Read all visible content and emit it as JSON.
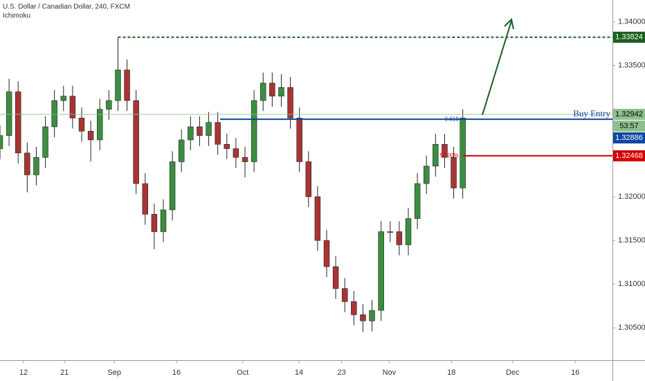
{
  "chart_data": {
    "type": "candlestick",
    "title": "U.S. Dollar / Canadian Dollar, 240, FXCM",
    "subtitle": "Ichimoku",
    "x": [
      0,
      2,
      4,
      6,
      8,
      10,
      12,
      14,
      16,
      18,
      20,
      22,
      24,
      26,
      28,
      30,
      32,
      34,
      36,
      38,
      40,
      42,
      44,
      46,
      48,
      50,
      52,
      54,
      56,
      58,
      60,
      62,
      64,
      66,
      68,
      70,
      72,
      74,
      76,
      78,
      80,
      82,
      84,
      86,
      88,
      90,
      92,
      94,
      96,
      98,
      100,
      102
    ],
    "open": [
      1.3255,
      1.327,
      1.332,
      1.325,
      1.3225,
      1.3245,
      1.328,
      1.331,
      1.3315,
      1.329,
      1.3275,
      1.3265,
      1.33,
      1.331,
      1.3345,
      1.331,
      1.3215,
      1.318,
      1.316,
      1.3185,
      1.324,
      1.3265,
      1.328,
      1.327,
      1.3285,
      1.326,
      1.3255,
      1.3245,
      1.324,
      1.331,
      1.333,
      1.3315,
      1.3325,
      1.329,
      1.324,
      1.32,
      1.315,
      1.312,
      1.3095,
      1.308,
      1.3065,
      1.3058,
      1.307,
      1.316,
      1.316,
      1.3145,
      1.3175,
      1.3215,
      1.3235,
      1.326,
      1.3245,
      1.321
    ],
    "high": [
      1.3282,
      1.3335,
      1.3332,
      1.3262,
      1.3257,
      1.3292,
      1.3322,
      1.3327,
      1.3327,
      1.3302,
      1.3287,
      1.3312,
      1.3322,
      1.3382,
      1.3357,
      1.3322,
      1.3227,
      1.3192,
      1.3197,
      1.3252,
      1.3277,
      1.3292,
      1.3292,
      1.3297,
      1.3297,
      1.3272,
      1.3267,
      1.3257,
      1.3322,
      1.3342,
      1.3342,
      1.334,
      1.3337,
      1.3302,
      1.3252,
      1.3212,
      1.3162,
      1.3132,
      1.3107,
      1.3092,
      1.3077,
      1.3082,
      1.3172,
      1.3172,
      1.3172,
      1.3187,
      1.3227,
      1.3247,
      1.3272,
      1.3272,
      1.3257,
      1.33
    ],
    "low": [
      1.3243,
      1.3258,
      1.3238,
      1.3205,
      1.3213,
      1.3233,
      1.3268,
      1.3298,
      1.3278,
      1.3263,
      1.324,
      1.3253,
      1.3288,
      1.3298,
      1.3298,
      1.3203,
      1.3168,
      1.314,
      1.3148,
      1.3173,
      1.3228,
      1.3253,
      1.3258,
      1.3258,
      1.3248,
      1.3243,
      1.3233,
      1.3222,
      1.3228,
      1.3298,
      1.3303,
      1.3303,
      1.3278,
      1.3228,
      1.3188,
      1.3138,
      1.3108,
      1.3083,
      1.3068,
      1.3053,
      1.3045,
      1.3046,
      1.3058,
      1.3148,
      1.3133,
      1.3133,
      1.3163,
      1.3203,
      1.3223,
      1.3233,
      1.3198,
      1.3198
    ],
    "close": [
      1.327,
      1.332,
      1.325,
      1.3225,
      1.3245,
      1.328,
      1.331,
      1.3315,
      1.329,
      1.3275,
      1.3265,
      1.33,
      1.331,
      1.3345,
      1.331,
      1.3215,
      1.318,
      1.316,
      1.3185,
      1.324,
      1.3265,
      1.328,
      1.327,
      1.3285,
      1.326,
      1.3255,
      1.3245,
      1.324,
      1.331,
      1.333,
      1.3315,
      1.3325,
      1.329,
      1.324,
      1.32,
      1.315,
      1.312,
      1.3095,
      1.308,
      1.3065,
      1.3058,
      1.307,
      1.316,
      1.316,
      1.3145,
      1.3175,
      1.3215,
      1.3235,
      1.326,
      1.3245,
      1.321,
      1.329
    ],
    "up_color": "#3b8e3f",
    "down_color": "#a83434",
    "xlim": [
      0,
      135
    ],
    "ylim": [
      1.3013,
      1.3425
    ],
    "xticks": [
      {
        "value": 5.2,
        "label": "12"
      },
      {
        "value": 14.2,
        "label": "21"
      },
      {
        "value": 25.2,
        "label": "Sep"
      },
      {
        "value": 38.9,
        "label": "16"
      },
      {
        "value": 53.5,
        "label": "Oct"
      },
      {
        "value": 65.9,
        "label": "14"
      },
      {
        "value": 75.3,
        "label": "23"
      },
      {
        "value": 85.8,
        "label": "Nov"
      },
      {
        "value": 99.5,
        "label": "18"
      },
      {
        "value": 113,
        "label": "Dec"
      },
      {
        "value": 126.8,
        "label": "16"
      }
    ],
    "yticks": [
      {
        "value": 1.34,
        "label": "1.34000"
      },
      {
        "value": 1.335,
        "label": "1.33500"
      },
      {
        "value": 1.32,
        "label": "1.32000"
      },
      {
        "value": 1.315,
        "label": "1.31500"
      },
      {
        "value": 1.31,
        "label": "1.31000"
      },
      {
        "value": 1.305,
        "label": "1.30500"
      }
    ],
    "levels": [
      {
        "value": 1.33824,
        "label": "1.33824",
        "color": "#1b5e20",
        "start": 26,
        "dashed": true
      },
      {
        "value": 1.32886,
        "label": "1.32886",
        "color": "#0d47a1",
        "start": 48.5,
        "text": "Buy Entry",
        "fib": "0.618"
      },
      {
        "value": 1.32468,
        "label": "1.32468",
        "color": "#d50000",
        "start": 102,
        "fib": "50.00%"
      }
    ],
    "current": {
      "value": 1.32942,
      "label": "1.32942",
      "countdown": "53:57",
      "color": "#8fbf8f"
    }
  }
}
